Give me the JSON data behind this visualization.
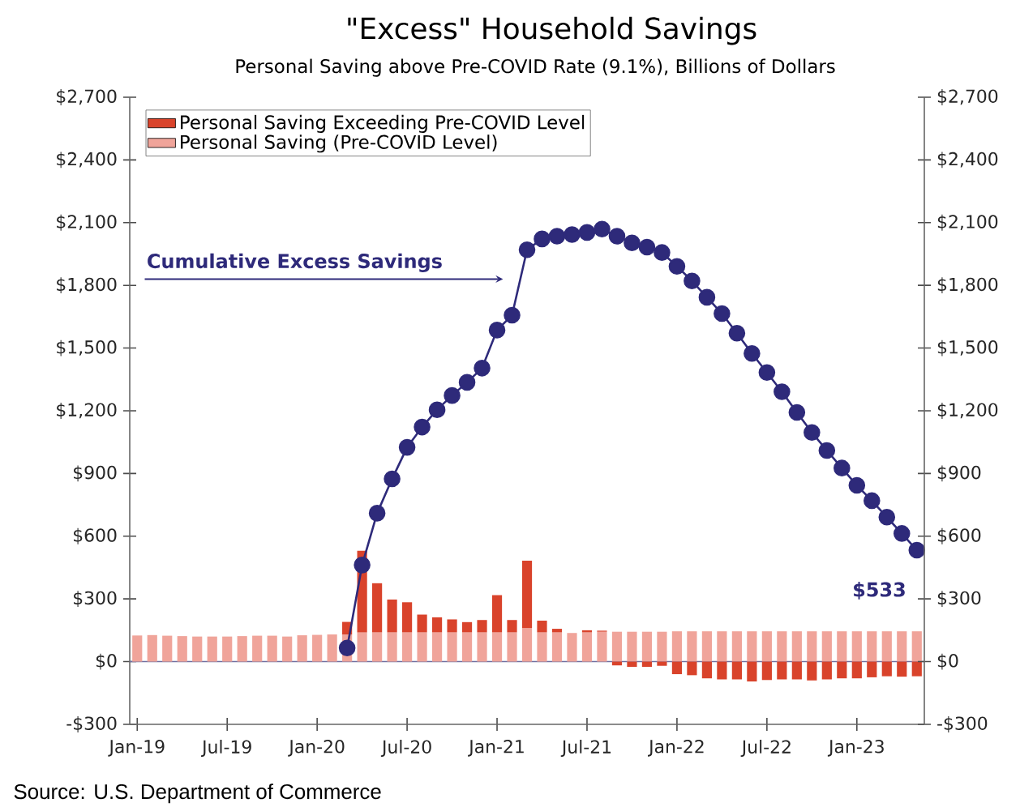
{
  "chart_data": {
    "type": "bar",
    "stacked": true,
    "title": "\"Excess\" Household Savings",
    "subtitle": "Personal Saving above Pre-COVID Rate (9.1%), Billions of Dollars",
    "annotations": [
      "Cumulative Excess Savings",
      "Source: U.S. Department of Commerce"
    ],
    "categories": [
      "Jan-19",
      null,
      null,
      null,
      null,
      null,
      "Jul-19",
      null,
      null,
      null,
      null,
      null,
      "Jan-20",
      null,
      null,
      null,
      null,
      null,
      "Jul-20",
      null,
      null,
      null,
      null,
      null,
      "Jan-21",
      null,
      null,
      null,
      null,
      null,
      "Jul-21",
      null,
      null,
      null,
      null,
      null,
      "Jan-22",
      null,
      null,
      null,
      null,
      null,
      "Jul-22",
      null,
      null,
      null,
      null,
      null,
      "Jan-23",
      null,
      null,
      null,
      null
    ],
    "series": [
      {
        "name": "Personal Saving (Pre-COVID Level)",
        "color": "#f0a49a",
        "values": [
          125,
          127,
          124,
          122,
          120,
          120,
          120,
          122,
          124,
          124,
          120,
          126,
          128,
          130,
          130,
          140,
          140,
          140,
          140,
          140,
          140,
          140,
          140,
          140,
          140,
          140,
          160,
          140,
          140,
          137,
          140,
          143,
          143,
          143,
          143,
          143,
          145,
          145,
          145,
          145,
          145,
          145,
          145,
          145,
          145,
          145,
          145,
          145,
          145,
          145,
          145,
          145,
          145
        ]
      },
      {
        "name": "Personal Saving Exceeding Pre-COVID Level",
        "color": "#d9432b",
        "values": [
          null,
          null,
          null,
          null,
          null,
          null,
          null,
          null,
          null,
          null,
          null,
          null,
          null,
          null,
          60,
          390,
          235,
          157,
          144,
          85,
          72,
          62,
          49,
          59,
          178,
          59,
          323,
          56,
          17,
          null,
          10,
          5,
          -18,
          -25,
          -25,
          -20,
          -60,
          -65,
          -80,
          -85,
          -85,
          -95,
          -88,
          -85,
          -85,
          -90,
          -85,
          -80,
          -80,
          -75,
          -70,
          -72,
          -70
        ]
      },
      {
        "type": "line",
        "color": "#2e2a7a",
        "marker": "circle",
        "values": [
          null,
          null,
          null,
          null,
          null,
          null,
          null,
          null,
          null,
          null,
          null,
          null,
          null,
          null,
          65,
          462,
          710,
          874,
          1025,
          1122,
          1205,
          1273,
          1336,
          1404,
          1586,
          1657,
          1970,
          2022,
          2035,
          2043,
          2053,
          2069,
          2035,
          2003,
          1983,
          1957,
          1891,
          1821,
          1743,
          1665,
          1571,
          1474,
          1383,
          1291,
          1192,
          1096,
          1010,
          926,
          843,
          770,
          691,
          613,
          533
        ],
        "value_labels": [
          null,
          null,
          null,
          null,
          null,
          null,
          null,
          null,
          null,
          null,
          null,
          null,
          null,
          null,
          null,
          null,
          null,
          null,
          null,
          null,
          null,
          null,
          null,
          null,
          null,
          null,
          null,
          null,
          null,
          null,
          null,
          null,
          null,
          null,
          null,
          null,
          null,
          null,
          null,
          null,
          null,
          null,
          null,
          null,
          null,
          null,
          null,
          null,
          null,
          null,
          null,
          null,
          "$533"
        ]
      }
    ],
    "ylim": [
      -300,
      2700
    ],
    "yticks": [
      {
        "value": -300,
        "label": "-$300"
      },
      {
        "value": 0,
        "label": "$0"
      },
      {
        "value": 300,
        "label": "$300"
      },
      {
        "value": 600,
        "label": "$600"
      },
      {
        "value": 900,
        "label": "$900"
      },
      {
        "value": 1200,
        "label": "$1,200"
      },
      {
        "value": 1500,
        "label": "$1,500"
      },
      {
        "value": 1800,
        "label": "$1,800"
      },
      {
        "value": 2100,
        "label": "$2,100"
      },
      {
        "value": 2400,
        "label": "$2,400"
      },
      {
        "value": 2700,
        "label": "$2,700"
      }
    ],
    "y2lim": [
      -300,
      2700
    ],
    "y2ticks": [
      {
        "value": -300,
        "label": "-$300"
      },
      {
        "value": 0,
        "label": "$0"
      },
      {
        "value": 300,
        "label": "$300"
      },
      {
        "value": 600,
        "label": "$600"
      },
      {
        "value": 900,
        "label": "$900"
      },
      {
        "value": 1200,
        "label": "$1,200"
      },
      {
        "value": 1500,
        "label": "$1,500"
      },
      {
        "value": 1800,
        "label": "$1,800"
      },
      {
        "value": 2100,
        "label": "$2,100"
      },
      {
        "value": 2400,
        "label": "$2,400"
      },
      {
        "value": 2700,
        "label": "$2,700"
      }
    ],
    "ref_lines": [
      {
        "axis": "y",
        "value": 0,
        "color": "#7070a0"
      }
    ],
    "legend": "top left",
    "grid": false
  }
}
